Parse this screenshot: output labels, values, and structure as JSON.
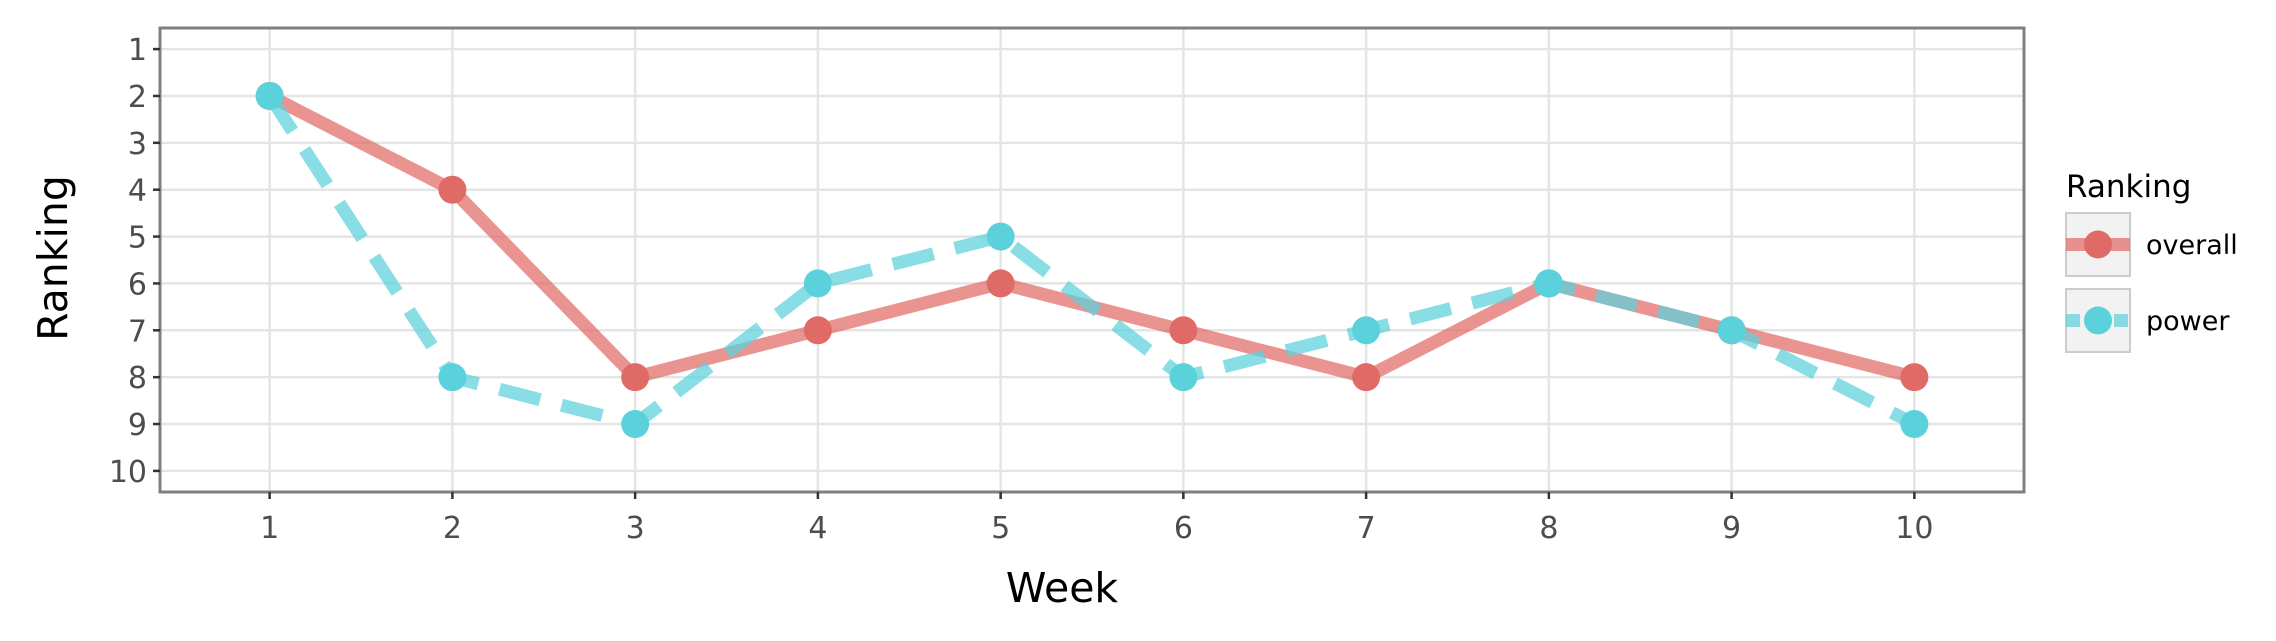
{
  "chart_data": {
    "type": "line",
    "title": "",
    "xlabel": "Week",
    "ylabel": "Ranking",
    "x": [
      1,
      2,
      3,
      4,
      5,
      6,
      7,
      8,
      9,
      10
    ],
    "x_ticks": [
      "1",
      "2",
      "3",
      "4",
      "5",
      "6",
      "7",
      "8",
      "9",
      "10"
    ],
    "y_ticks": [
      "1",
      "2",
      "3",
      "4",
      "5",
      "6",
      "7",
      "8",
      "9",
      "10"
    ],
    "ylim": [
      1,
      10
    ],
    "y_reversed": true,
    "grid": true,
    "legend_title": "Ranking",
    "legend_position": "right",
    "series": [
      {
        "name": "overall",
        "color": "#E06B66",
        "line_style": "solid",
        "values": [
          2,
          4,
          8,
          7,
          6,
          7,
          8,
          6,
          7,
          8
        ]
      },
      {
        "name": "power",
        "color": "#5BD1DC",
        "line_style": "dashed",
        "values": [
          2,
          8,
          9,
          6,
          5,
          8,
          7,
          6,
          7,
          9
        ]
      }
    ]
  }
}
